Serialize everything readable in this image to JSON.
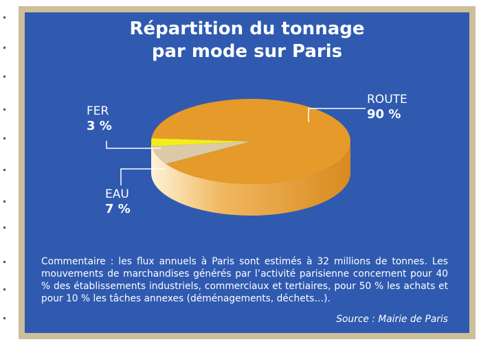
{
  "chart_data": {
    "type": "pie",
    "title": "Répartition du tonnage par mode sur Paris",
    "title_lines": [
      "Répartition du tonnage",
      "par mode sur Paris"
    ],
    "slices": [
      {
        "label": "ROUTE",
        "value": 90,
        "value_label": "90 %",
        "color": "#e59a2a"
      },
      {
        "label": "EAU",
        "value": 7,
        "value_label": "7 %",
        "color": "#dcc9a8"
      },
      {
        "label": "FER",
        "value": 3,
        "value_label": "3 %",
        "color": "#f2ee1a"
      }
    ],
    "legend": "none",
    "style": "3d-pie"
  },
  "comment": "Commentaire : les flux annuels à Paris sont estimés à 32 millions de tonnes. Les mouvements de marchandises générés par l’activité parisienne concernent pour 40 % des établissements industriels, commerciaux et tertiaires, pour 50 % les achats et pour 10 % les tâches annexes (déménagements, déchets…).",
  "source": "Source : Mairie de Paris",
  "colors": {
    "panel": "#2f5ab0",
    "frame": "#cdbf9a",
    "text": "#ffffff"
  }
}
